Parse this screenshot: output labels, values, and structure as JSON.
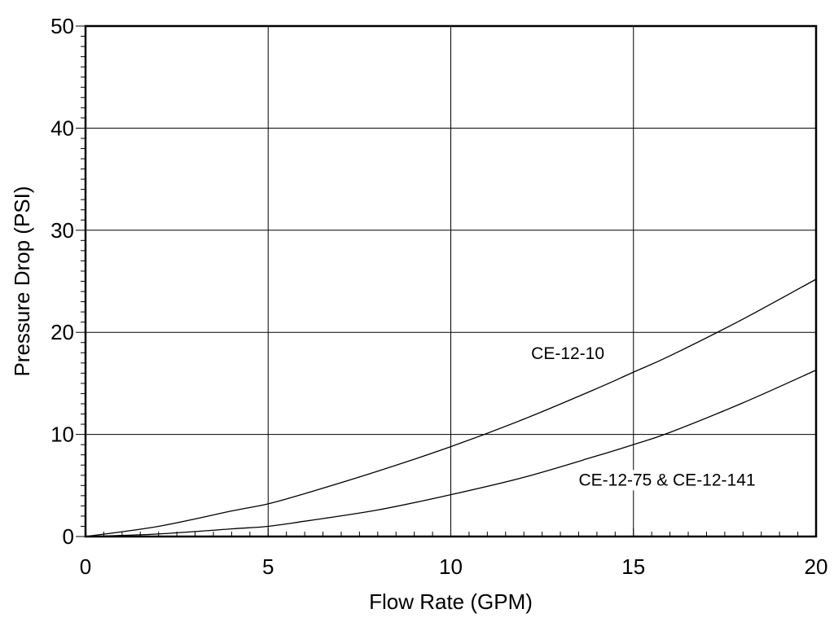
{
  "chart_data": {
    "type": "line",
    "title": "",
    "xlabel": "Flow Rate (GPM)",
    "ylabel": "Pressure Drop (PSI)",
    "xlim": [
      0,
      20
    ],
    "ylim": [
      0,
      50
    ],
    "x_ticks": [
      0,
      5,
      10,
      15,
      20
    ],
    "y_ticks": [
      0,
      10,
      20,
      30,
      40,
      50
    ],
    "grid": true,
    "series": [
      {
        "name": "CE-12-10",
        "x": [
          0,
          2,
          4,
          5,
          6,
          8,
          10,
          12,
          14,
          15,
          16,
          18,
          20
        ],
        "y": [
          0,
          1.0,
          2.5,
          3.2,
          4.2,
          6.4,
          8.8,
          11.5,
          14.5,
          16.1,
          17.7,
          21.3,
          25.2
        ]
      },
      {
        "name": "CE-12-75 & CE-12-141",
        "x": [
          0,
          2,
          4,
          5,
          6,
          8,
          10,
          12,
          14,
          15,
          16,
          18,
          20
        ],
        "y": [
          0,
          0.25,
          0.75,
          1.0,
          1.5,
          2.6,
          4.1,
          5.8,
          7.9,
          9.0,
          10.2,
          13.1,
          16.3
        ]
      }
    ],
    "annotations": [
      {
        "text": "CE-12-10",
        "x": 12.2,
        "y": 17.4
      },
      {
        "text": "CE-12-75 & CE-12-141",
        "x": 13.5,
        "y": 5.0
      }
    ]
  }
}
